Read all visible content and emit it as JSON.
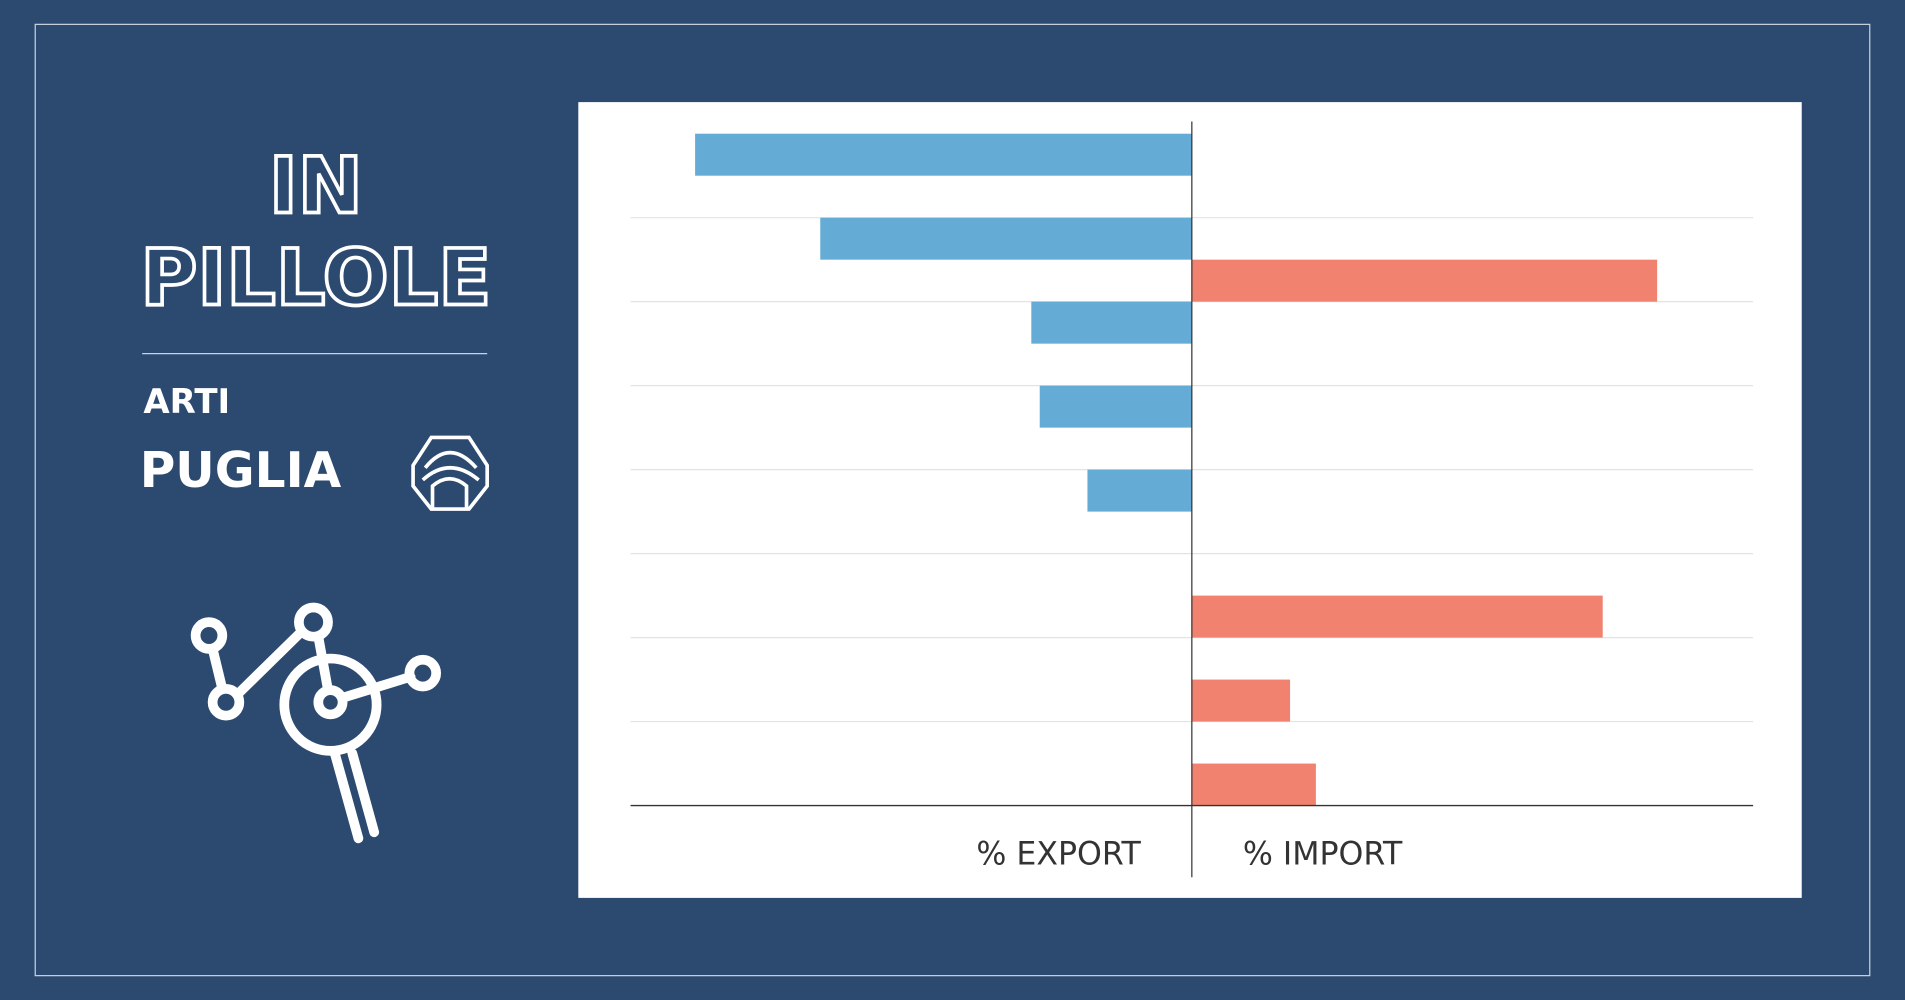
{
  "header": {
    "title_line1": "IN",
    "title_line2": "PILLOLE",
    "section": "ARTI",
    "region": "PUGLIA"
  },
  "chart_data": {
    "type": "diverging-bar",
    "categories": [
      null,
      null,
      null,
      null,
      null,
      null,
      null,
      null
    ],
    "series": [
      {
        "name": "% EXPORT",
        "color": "#64acd6",
        "values": [
          -88.5,
          -66.2,
          -28.6,
          -27.1,
          -18.6,
          0,
          0,
          0
        ]
      },
      {
        "name": "% IMPORT",
        "color": "#f0826f",
        "values": [
          0,
          82.9,
          0,
          0,
          0,
          73.2,
          17.5,
          22.1
        ]
      }
    ],
    "xlim": [
      -100,
      100
    ],
    "grid": true
  }
}
